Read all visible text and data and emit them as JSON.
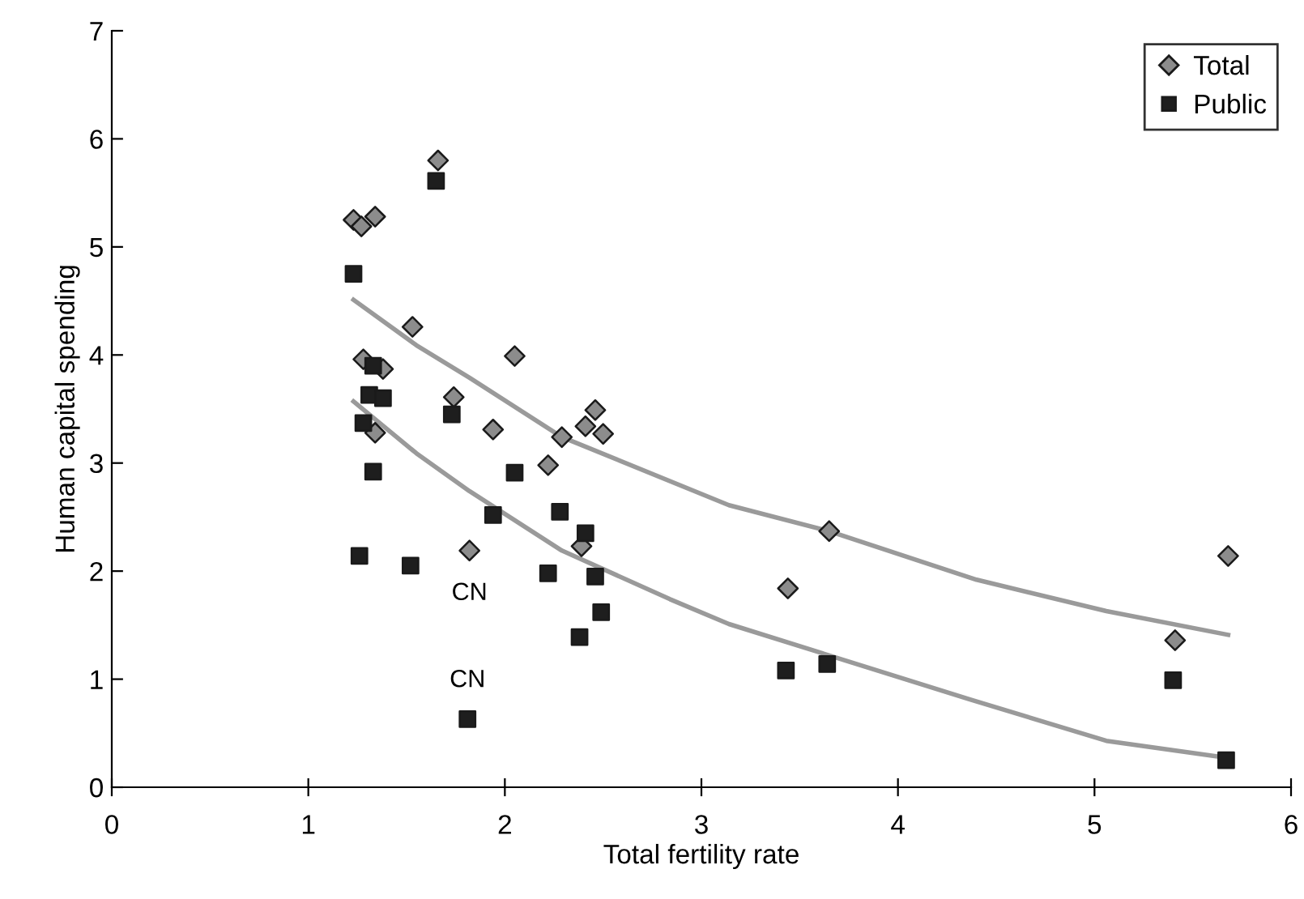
{
  "chart_data": {
    "type": "scatter",
    "xlabel": "Total fertility rate",
    "ylabel": "Human capital spending",
    "xlim": [
      0,
      6
    ],
    "ylim": [
      0,
      7
    ],
    "xticks": [
      0,
      1,
      2,
      3,
      4,
      5,
      6
    ],
    "yticks": [
      0,
      1,
      2,
      3,
      4,
      5,
      6,
      7
    ],
    "grid": false,
    "legend": "top right",
    "series": [
      {
        "name": "Total",
        "marker": "diamond",
        "color": "#8c8c8c",
        "x": [
          1.23,
          1.27,
          1.34,
          1.66,
          1.53,
          1.28,
          1.38,
          1.34,
          1.74,
          1.94,
          2.05,
          2.22,
          2.29,
          2.41,
          2.46,
          2.5,
          2.39,
          1.82,
          3.44,
          3.65,
          5.41,
          5.68
        ],
        "values": [
          5.25,
          5.19,
          5.28,
          5.8,
          4.26,
          3.96,
          3.87,
          3.28,
          3.61,
          3.31,
          3.99,
          2.98,
          3.24,
          3.34,
          3.49,
          3.27,
          2.23,
          2.19,
          1.84,
          2.37,
          1.36,
          2.14
        ]
      },
      {
        "name": "Public",
        "marker": "square",
        "color": "#1e1e1e",
        "x": [
          1.23,
          1.65,
          1.33,
          1.31,
          1.38,
          1.28,
          1.73,
          1.33,
          2.05,
          1.94,
          2.28,
          2.41,
          1.26,
          1.52,
          2.22,
          2.46,
          2.49,
          2.38,
          1.81,
          3.43,
          3.64,
          5.4,
          5.67
        ],
        "values": [
          4.75,
          5.61,
          3.9,
          3.63,
          3.6,
          3.37,
          3.45,
          2.92,
          2.91,
          2.52,
          2.55,
          2.35,
          2.14,
          2.05,
          1.98,
          1.95,
          1.62,
          1.39,
          0.63,
          1.08,
          1.14,
          0.99,
          0.25
        ]
      },
      {
        "type": "line",
        "marker": "none",
        "color": "#9a9a9a",
        "x": [
          1.23,
          1.55,
          1.82,
          2.29,
          3.14,
          3.65,
          4.4,
          5.06,
          5.68
        ],
        "values": [
          4.51,
          4.09,
          3.79,
          3.24,
          2.61,
          2.37,
          1.92,
          1.63,
          1.41
        ]
      },
      {
        "type": "line",
        "marker": "none",
        "color": "#9a9a9a",
        "x": [
          1.23,
          1.55,
          1.82,
          2.29,
          2.84,
          3.14,
          4.37,
          5.06,
          5.68
        ],
        "values": [
          3.57,
          3.09,
          2.74,
          2.19,
          1.74,
          1.51,
          0.81,
          0.43,
          0.27
        ]
      }
    ],
    "annotations": [
      {
        "text": "CN",
        "x": 1.82,
        "y": 2.19
      },
      {
        "text": "CN",
        "x": 1.81,
        "y": 0.63
      }
    ]
  }
}
